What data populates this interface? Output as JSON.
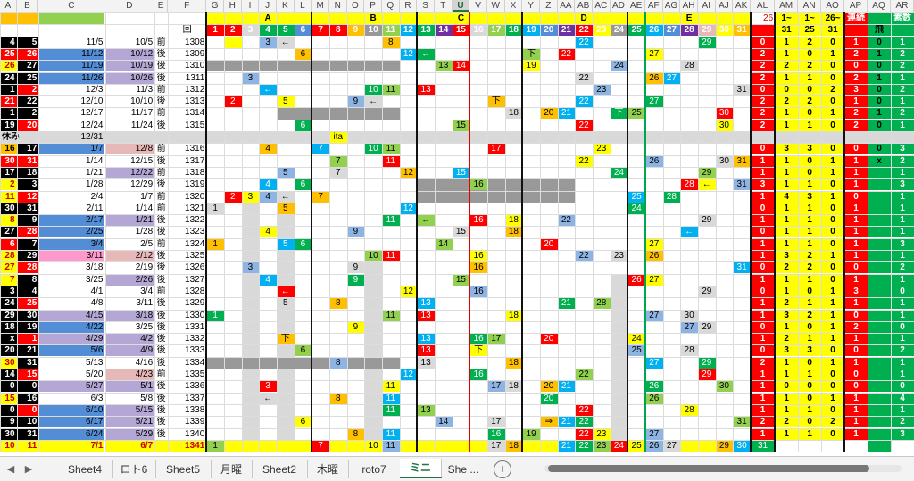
{
  "colors": {
    "yellow": "#ffff00",
    "red": "#ff0000",
    "green": "#00b050",
    "blue": "#00b0f0",
    "orange": "#ffc000",
    "purple": "#7030a0",
    "gray": "#999999",
    "lgray": "#d9d9d9",
    "olive": "#92d050",
    "lblue": "#8db4e2",
    "pink": "#ff99cc",
    "black": "#000000",
    "lavender": "#b4a7d6",
    "salmon": "#e6b8b7",
    "steel": "#538dd5"
  },
  "columns": [
    "A",
    "B",
    "C",
    "D",
    "E",
    "F",
    "G",
    "H",
    "I",
    "J",
    "K",
    "L",
    "M",
    "N",
    "O",
    "P",
    "Q",
    "R",
    "S",
    "T",
    "U",
    "V",
    "W",
    "X",
    "Y",
    "Z",
    "AA",
    "AB",
    "AC",
    "AD",
    "AE",
    "AF",
    "AG",
    "AH",
    "AI",
    "AJ",
    "AK",
    "AL",
    "AM",
    "AN",
    "AO",
    "AP",
    "AQ",
    "AR"
  ],
  "selected_column": "U",
  "group_headers": [
    {
      "label": "A",
      "col": "J"
    },
    {
      "label": "B",
      "col": "P"
    },
    {
      "label": "C",
      "col": "U"
    },
    {
      "label": "D",
      "col": "AB"
    },
    {
      "label": "E",
      "col": "AH"
    }
  ],
  "header_row2": {
    "numbers": [
      "1",
      "2",
      "3",
      "4",
      "5",
      "6",
      "7",
      "8",
      "9",
      "10",
      "11",
      "12",
      "13",
      "14",
      "15",
      "16",
      "17",
      "18",
      "19",
      "20",
      "21",
      "22",
      "23",
      "24",
      "25",
      "26",
      "27",
      "28",
      "29",
      "30",
      "31"
    ],
    "f_label": "回",
    "al_top": "26",
    "am_top": "1~",
    "an_top": "1~",
    "ao_top": "26~",
    "am_bot": "31",
    "an_bot": "25",
    "ao_bot": "31",
    "ap_label": "連続",
    "aq_label": "飛",
    "ar_label": "素数"
  },
  "rows": [
    {
      "a": "4",
      "b": "5",
      "c": "11/5",
      "d": "10/5",
      "e": "前",
      "f": "1308",
      "al": "0",
      "am": "1",
      "an": "2",
      "ao": "0",
      "ap": "1",
      "aq": "0",
      "ar": "1"
    },
    {
      "a": "25",
      "b": "26",
      "c": "11/12",
      "d": "10/12",
      "e": "後",
      "f": "1309",
      "al": "2",
      "am": "1",
      "an": "0",
      "ao": "1",
      "ap": "2",
      "aq": "1",
      "ar": "2"
    },
    {
      "a": "26",
      "b": "27",
      "c": "11/19",
      "d": "10/19",
      "e": "後",
      "f": "1310",
      "al": "2",
      "am": "2",
      "an": "2",
      "ao": "0",
      "ap": "0",
      "aq": "0",
      "ar": "2"
    },
    {
      "a": "24",
      "b": "25",
      "c": "11/26",
      "d": "10/26",
      "e": "後",
      "f": "1311",
      "al": "2",
      "am": "1",
      "an": "1",
      "ao": "0",
      "ap": "2",
      "aq": "1",
      "ar": "1"
    },
    {
      "a": "1",
      "b": "2",
      "c": "12/3",
      "d": "11/3",
      "e": "前",
      "f": "1312",
      "al": "0",
      "am": "0",
      "an": "0",
      "ao": "2",
      "ap": "3",
      "aq": "0",
      "ar": "2"
    },
    {
      "a": "21",
      "b": "22",
      "c": "12/10",
      "d": "10/10",
      "e": "後",
      "f": "1313",
      "al": "2",
      "am": "2",
      "an": "2",
      "ao": "0",
      "ap": "1",
      "aq": "0",
      "ar": "1"
    },
    {
      "a": "1",
      "b": "2",
      "c": "12/17",
      "d": "11/17",
      "e": "前",
      "f": "1314",
      "al": "2",
      "am": "1",
      "an": "0",
      "ao": "1",
      "ap": "2",
      "aq": "1",
      "ar": "2"
    },
    {
      "a": "19",
      "b": "20",
      "c": "12/24",
      "d": "11/24",
      "e": "後",
      "f": "1315",
      "al": "2",
      "am": "1",
      "an": "1",
      "ao": "0",
      "ap": "2",
      "aq": "0",
      "ar": "1"
    },
    {
      "a": "休み",
      "b": "",
      "c": "12/31",
      "d": "",
      "e": "",
      "f": "",
      "al": "",
      "am": "",
      "an": "",
      "ao": "",
      "ap": "",
      "aq": "",
      "ar": ""
    },
    {
      "a": "16",
      "b": "17",
      "c": "1/7",
      "d": "12/8",
      "e": "前",
      "f": "1316",
      "al": "0",
      "am": "3",
      "an": "3",
      "ao": "0",
      "ap": "0",
      "aq": "0",
      "ar": "3"
    },
    {
      "a": "30",
      "b": "31",
      "c": "1/14",
      "d": "12/15",
      "e": "後",
      "f": "1317",
      "al": "1",
      "am": "1",
      "an": "0",
      "ao": "1",
      "ap": "1",
      "aq": "x",
      "ar": "2"
    },
    {
      "a": "17",
      "b": "18",
      "c": "1/21",
      "d": "12/22",
      "e": "前",
      "f": "1318",
      "al": "1",
      "am": "1",
      "an": "0",
      "ao": "1",
      "ap": "1",
      "aq": "",
      "ar": "1"
    },
    {
      "a": "2",
      "b": "3",
      "c": "1/28",
      "d": "12/29",
      "e": "後",
      "f": "1319",
      "al": "3",
      "am": "1",
      "an": "1",
      "ao": "0",
      "ap": "1",
      "aq": "",
      "ar": "3"
    },
    {
      "a": "11",
      "b": "12",
      "c": "2/4",
      "d": "1/7",
      "e": "前",
      "f": "1320",
      "al": "1",
      "am": "4",
      "an": "3",
      "ao": "1",
      "ap": "0",
      "aq": "",
      "ar": "1"
    },
    {
      "a": "30",
      "b": "31",
      "c": "2/11",
      "d": "1/14",
      "e": "前",
      "f": "1321",
      "al": "0",
      "am": "1",
      "an": "1",
      "ao": "0",
      "ap": "1",
      "aq": "",
      "ar": "1"
    },
    {
      "a": "8",
      "b": "9",
      "c": "2/17",
      "d": "1/21",
      "e": "後",
      "f": "1322",
      "al": "1",
      "am": "1",
      "an": "1",
      "ao": "0",
      "ap": "1",
      "aq": "",
      "ar": "1"
    },
    {
      "a": "27",
      "b": "28",
      "c": "2/25",
      "d": "1/28",
      "e": "後",
      "f": "1323",
      "al": "0",
      "am": "1",
      "an": "1",
      "ao": "0",
      "ap": "1",
      "aq": "",
      "ar": "1"
    },
    {
      "a": "6",
      "b": "7",
      "c": "3/4",
      "d": "2/5",
      "e": "前",
      "f": "1324",
      "al": "1",
      "am": "1",
      "an": "1",
      "ao": "0",
      "ap": "1",
      "aq": "",
      "ar": "3"
    },
    {
      "a": "28",
      "b": "29",
      "c": "3/11",
      "d": "2/12",
      "e": "後",
      "f": "1325",
      "al": "1",
      "am": "3",
      "an": "2",
      "ao": "1",
      "ap": "1",
      "aq": "",
      "ar": "1"
    },
    {
      "a": "27",
      "b": "28",
      "c": "3/18",
      "d": "2/19",
      "e": "後",
      "f": "1326",
      "al": "0",
      "am": "2",
      "an": "2",
      "ao": "0",
      "ap": "0",
      "aq": "",
      "ar": "2"
    },
    {
      "a": "7",
      "b": "8",
      "c": "3/25",
      "d": "2/26",
      "e": "後",
      "f": "1327",
      "al": "1",
      "am": "1",
      "an": "1",
      "ao": "0",
      "ap": "1",
      "aq": "",
      "ar": "1"
    },
    {
      "a": "3",
      "b": "4",
      "c": "4/1",
      "d": "3/4",
      "e": "前",
      "f": "1328",
      "al": "0",
      "am": "1",
      "an": "0",
      "ao": "1",
      "ap": "3",
      "aq": "",
      "ar": "0"
    },
    {
      "a": "24",
      "b": "25",
      "c": "4/8",
      "d": "3/11",
      "e": "後",
      "f": "1329",
      "al": "1",
      "am": "2",
      "an": "1",
      "ao": "1",
      "ap": "1",
      "aq": "",
      "ar": "1"
    },
    {
      "a": "29",
      "b": "30",
      "c": "4/15",
      "d": "3/18",
      "e": "後",
      "f": "1330",
      "al": "1",
      "am": "3",
      "an": "2",
      "ao": "1",
      "ap": "0",
      "aq": "",
      "ar": "1"
    },
    {
      "a": "18",
      "b": "19",
      "c": "4/22",
      "d": "3/25",
      "e": "後",
      "f": "1331",
      "al": "0",
      "am": "1",
      "an": "0",
      "ao": "1",
      "ap": "2",
      "aq": "",
      "ar": "0"
    },
    {
      "a": "x",
      "b": "1",
      "c": "4/29",
      "d": "4/2",
      "e": "後",
      "f": "1332",
      "al": "1",
      "am": "2",
      "an": "1",
      "ao": "1",
      "ap": "1",
      "aq": "",
      "ar": "1"
    },
    {
      "a": "20",
      "b": "21",
      "c": "5/6",
      "d": "4/9",
      "e": "後",
      "f": "1333",
      "al": "0",
      "am": "3",
      "an": "3",
      "ao": "0",
      "ap": "0",
      "aq": "",
      "ar": "2"
    },
    {
      "a": "30",
      "b": "31",
      "c": "5/13",
      "d": "4/16",
      "e": "後",
      "f": "1334",
      "al": "2",
      "am": "1",
      "an": "0",
      "ao": "1",
      "ap": "1",
      "aq": "",
      "ar": "1"
    },
    {
      "a": "14",
      "b": "15",
      "c": "5/20",
      "d": "4/23",
      "e": "前",
      "f": "1335",
      "al": "1",
      "am": "1",
      "an": "1",
      "ao": "0",
      "ap": "0",
      "aq": "",
      "ar": "1"
    },
    {
      "a": "0",
      "b": "0",
      "c": "5/27",
      "d": "5/1",
      "e": "後",
      "f": "1336",
      "al": "1",
      "am": "0",
      "an": "0",
      "ao": "0",
      "ap": "0",
      "aq": "",
      "ar": "0"
    },
    {
      "a": "15",
      "b": "16",
      "c": "6/3",
      "d": "5/8",
      "e": "後",
      "f": "1337",
      "al": "1",
      "am": "1",
      "an": "0",
      "ao": "1",
      "ap": "1",
      "aq": "",
      "ar": "4"
    },
    {
      "a": "0",
      "b": "0",
      "c": "6/10",
      "d": "5/15",
      "e": "後",
      "f": "1338",
      "al": "1",
      "am": "1",
      "an": "1",
      "ao": "0",
      "ap": "1",
      "aq": "",
      "ar": "1"
    },
    {
      "a": "9",
      "b": "10",
      "c": "6/17",
      "d": "5/21",
      "e": "後",
      "f": "1339",
      "al": "2",
      "am": "2",
      "an": "0",
      "ao": "2",
      "ap": "1",
      "aq": "",
      "ar": "2"
    },
    {
      "a": "30",
      "b": "31",
      "c": "6/24",
      "d": "5/29",
      "e": "後",
      "f": "1340",
      "al": "1",
      "am": "1",
      "an": "1",
      "ao": "0",
      "ap": "1",
      "aq": "",
      "ar": "3"
    },
    {
      "a": "10",
      "b": "11",
      "c": "7/1",
      "d": "6/7",
      "e": "",
      "f": "1341",
      "al": "",
      "am": "",
      "an": "",
      "ao": "",
      "ap": "",
      "aq": "",
      "ar": ""
    }
  ],
  "scatter": [
    [
      [
        "H",
        ""
      ],
      [
        "J",
        "3"
      ],
      [
        "K",
        "←"
      ],
      [
        "Q",
        "8"
      ],
      [
        "AB",
        "22"
      ],
      [
        "AI",
        "29"
      ]
    ],
    [
      [
        "L",
        "6"
      ],
      [
        "R",
        "12"
      ],
      [
        "S",
        "←"
      ],
      [
        "Y",
        "下"
      ],
      [
        "AA",
        "22"
      ],
      [
        "AF",
        "27"
      ]
    ],
    [
      [
        "T",
        "13"
      ],
      [
        "U",
        "14"
      ],
      [
        "Y",
        "19"
      ],
      [
        "AD",
        "24"
      ],
      [
        "AH",
        "28"
      ]
    ],
    [
      [
        "I",
        "3"
      ],
      [
        "AB",
        "22"
      ],
      [
        "AF",
        "26"
      ],
      [
        "AG",
        "27"
      ]
    ],
    [
      [
        "J",
        "←"
      ],
      [
        "P",
        "10"
      ],
      [
        "Q",
        "11"
      ],
      [
        "S",
        "13"
      ],
      [
        "AC",
        "21"
      ],
      [
        "AC",
        "23"
      ],
      [
        "AK",
        "31"
      ]
    ],
    [
      [
        "H",
        "2"
      ],
      [
        "K",
        "5"
      ],
      [
        "O",
        "9"
      ],
      [
        "P",
        "←"
      ],
      [
        "W",
        "下"
      ],
      [
        "AB",
        "22"
      ],
      [
        "AF",
        "27"
      ]
    ],
    [
      [
        "X",
        "18"
      ],
      [
        "Z",
        "20"
      ],
      [
        "AA",
        "21"
      ],
      [
        "AD",
        "下"
      ],
      [
        "AE",
        "25"
      ],
      [
        "AJ",
        "30"
      ]
    ],
    [
      [
        "L",
        "6"
      ],
      [
        "U",
        "15"
      ],
      [
        "AB",
        "22"
      ],
      [
        "AJ",
        "30"
      ]
    ],
    [
      [
        "N",
        "ita"
      ]
    ],
    [
      [
        "J",
        "4"
      ],
      [
        "M",
        "7"
      ],
      [
        "P",
        "10"
      ],
      [
        "Q",
        "11"
      ],
      [
        "W",
        "17"
      ],
      [
        "AC",
        "23"
      ]
    ],
    [
      [
        "N",
        "7"
      ],
      [
        "Q",
        "11"
      ],
      [
        "AB",
        "22"
      ],
      [
        "AF",
        "26"
      ],
      [
        "AJ",
        "30"
      ],
      [
        "AK",
        "31"
      ]
    ],
    [
      [
        "K",
        "5"
      ],
      [
        "N",
        "7"
      ],
      [
        "R",
        "12"
      ],
      [
        "U",
        "15"
      ],
      [
        "AD",
        "24"
      ],
      [
        "AI",
        "29"
      ]
    ],
    [
      [
        "J",
        "4"
      ],
      [
        "L",
        "6"
      ],
      [
        "V",
        "16"
      ],
      [
        "AH",
        "28"
      ],
      [
        "AI",
        "←"
      ],
      [
        "AK",
        "31"
      ]
    ],
    [
      [
        "H",
        "2"
      ],
      [
        "I",
        "3"
      ],
      [
        "J",
        "4"
      ],
      [
        "K",
        "←"
      ],
      [
        "M",
        "7"
      ],
      [
        "AE",
        "25"
      ],
      [
        "AG",
        "28"
      ]
    ],
    [
      [
        "G",
        "1"
      ],
      [
        "K",
        "5"
      ],
      [
        "R",
        "12"
      ],
      [
        "AE",
        "24"
      ]
    ],
    [
      [
        "Q",
        "11"
      ],
      [
        "S",
        "←"
      ],
      [
        "V",
        "16"
      ],
      [
        "X",
        "18"
      ],
      [
        "AA",
        "22"
      ],
      [
        "AI",
        "29"
      ]
    ],
    [
      [
        "J",
        "4"
      ],
      [
        "O",
        "9"
      ],
      [
        "U",
        "15"
      ],
      [
        "X",
        "18"
      ],
      [
        "AH",
        "←"
      ]
    ],
    [
      [
        "G",
        "1"
      ],
      [
        "K",
        "5"
      ],
      [
        "L",
        "6"
      ],
      [
        "T",
        "14"
      ],
      [
        "Z",
        "20"
      ],
      [
        "AF",
        "27"
      ]
    ],
    [
      [
        "P",
        "10"
      ],
      [
        "Q",
        "11"
      ],
      [
        "V",
        "16"
      ],
      [
        "AB",
        "22"
      ],
      [
        "AD",
        "23"
      ],
      [
        "AF",
        "26"
      ]
    ],
    [
      [
        "I",
        "3"
      ],
      [
        "O",
        "9"
      ],
      [
        "V",
        "16"
      ],
      [
        "AK",
        "31"
      ]
    ],
    [
      [
        "J",
        "4"
      ],
      [
        "O",
        "9"
      ],
      [
        "U",
        "15"
      ],
      [
        "AE",
        "26"
      ],
      [
        "AF",
        "27"
      ]
    ],
    [
      [
        "K",
        "←"
      ],
      [
        "R",
        "12"
      ],
      [
        "V",
        "16"
      ],
      [
        "AI",
        "29"
      ]
    ],
    [
      [
        "K",
        "5"
      ],
      [
        "N",
        "8"
      ],
      [
        "S",
        "13"
      ],
      [
        "AA",
        "21"
      ],
      [
        "AC",
        "28"
      ]
    ],
    [
      [
        "G",
        "1"
      ],
      [
        "Q",
        "11"
      ],
      [
        "S",
        "13"
      ],
      [
        "X",
        "18"
      ],
      [
        "AF",
        "27"
      ],
      [
        "AH",
        "30"
      ]
    ],
    [
      [
        "O",
        "9"
      ],
      [
        "AH",
        "27"
      ],
      [
        "AI",
        "29"
      ]
    ],
    [
      [
        "K",
        "下"
      ],
      [
        "S",
        "13"
      ],
      [
        "V",
        "16"
      ],
      [
        "W",
        "17"
      ],
      [
        "Z",
        "20"
      ],
      [
        "AE",
        "24"
      ]
    ],
    [
      [
        "L",
        "6"
      ],
      [
        "S",
        "13"
      ],
      [
        "V",
        "下"
      ],
      [
        "AE",
        "25"
      ],
      [
        "AH",
        "28"
      ]
    ],
    [
      [
        "N",
        "8"
      ],
      [
        "S",
        "13"
      ],
      [
        "X",
        "18"
      ],
      [
        "AF",
        "27"
      ],
      [
        "AI",
        "29"
      ]
    ],
    [
      [
        "R",
        "12"
      ],
      [
        "V",
        "16"
      ],
      [
        "AB",
        "22"
      ],
      [
        "AI",
        "29"
      ]
    ],
    [
      [
        "J",
        "3"
      ],
      [
        "Q",
        "11"
      ],
      [
        "W",
        "17"
      ],
      [
        "X",
        "18"
      ],
      [
        "Z",
        "20"
      ],
      [
        "AA",
        "21"
      ],
      [
        "AF",
        "26"
      ],
      [
        "AJ",
        "30"
      ]
    ],
    [
      [
        "J",
        "←"
      ],
      [
        "N",
        "8"
      ],
      [
        "Q",
        "11"
      ],
      [
        "Z",
        "20"
      ],
      [
        "AF",
        "26"
      ]
    ],
    [
      [
        "Q",
        "11"
      ],
      [
        "S",
        "13"
      ],
      [
        "AB",
        "22"
      ],
      [
        "AH",
        "28"
      ]
    ],
    [
      [
        "L",
        "6"
      ],
      [
        "T",
        "14"
      ],
      [
        "W",
        "17"
      ],
      [
        "Z",
        "⇒"
      ],
      [
        "AA",
        "21"
      ],
      [
        "AB",
        "22"
      ],
      [
        "AK",
        "31"
      ]
    ],
    [
      [
        "O",
        "8"
      ],
      [
        "Q",
        "11"
      ],
      [
        "W",
        "16"
      ],
      [
        "Y",
        "19"
      ],
      [
        "AB",
        "22"
      ],
      [
        "AC",
        "23"
      ],
      [
        "AF",
        "27"
      ]
    ],
    [
      [
        "G",
        "1"
      ],
      [
        "M",
        "7"
      ],
      [
        "P",
        "10"
      ],
      [
        "Q",
        "11"
      ],
      [
        "W",
        "17"
      ],
      [
        "X",
        "18"
      ],
      [
        "AA",
        "21"
      ],
      [
        "AB",
        "22"
      ],
      [
        "AC",
        "23"
      ],
      [
        "AD",
        "24"
      ],
      [
        "AE",
        "25"
      ],
      [
        "AF",
        "26"
      ],
      [
        "AG",
        "27"
      ],
      [
        "AJ",
        "29"
      ],
      [
        "AK",
        "30"
      ],
      [
        "AL",
        "31"
      ]
    ]
  ],
  "tabs": [
    {
      "label": "Sheet4",
      "active": false
    },
    {
      "label": "ロト6",
      "active": false
    },
    {
      "label": "Sheet5",
      "active": false
    },
    {
      "label": "月曜",
      "active": false
    },
    {
      "label": "Sheet2",
      "active": false
    },
    {
      "label": "木曜",
      "active": false
    },
    {
      "label": "roto7",
      "active": false
    },
    {
      "label": "ミニ",
      "active": true
    },
    {
      "label": "She ...",
      "active": false
    }
  ],
  "add_sheet_label": "+",
  "nav_prev": "◀",
  "nav_next": "▶"
}
